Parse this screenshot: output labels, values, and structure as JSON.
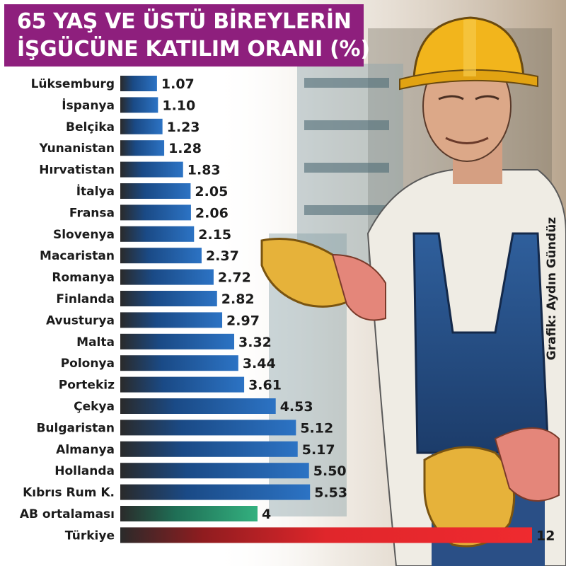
{
  "title": {
    "line1": "65 YAŞ VE ÜSTÜ BİREYLERİN",
    "line2": "İŞGÜCÜNE KATILIM ORANI (%)"
  },
  "credit": "Grafik: Aydın Gündüz",
  "colors": {
    "title_bg": "#8e1f7d",
    "bar_blue": "#1e5fa8",
    "bar_green": "#2e9a72",
    "bar_red": "#e0262b"
  },
  "chart_data": {
    "type": "bar",
    "orientation": "horizontal",
    "title": "65 YAŞ VE ÜSTÜ BİREYLERİN İŞGÜCÜNE KATILIM ORANI (%)",
    "xlabel": "",
    "ylabel": "",
    "grid": false,
    "legend": "none",
    "xlim": [
      0,
      12
    ],
    "categories": [
      "Lüksemburg",
      "İspanya",
      "Belçika",
      "Yunanistan",
      "Hırvatistan",
      "İtalya",
      "Fransa",
      "Slovenya",
      "Macaristan",
      "Romanya",
      "Finlanda",
      "Avusturya",
      "Malta",
      "Polonya",
      "Portekiz",
      "Çekya",
      "Bulgaristan",
      "Almanya",
      "Hollanda",
      "Kıbrıs Rum K.",
      "AB ortalaması",
      "Türkiye"
    ],
    "values": [
      1.07,
      1.1,
      1.23,
      1.28,
      1.83,
      2.05,
      2.06,
      2.15,
      2.37,
      2.72,
      2.82,
      2.97,
      3.32,
      3.44,
      3.61,
      4.53,
      5.12,
      5.17,
      5.5,
      5.53,
      4,
      12
    ],
    "value_labels": [
      "1.07",
      "1.10",
      "1.23",
      "1.28",
      "1.83",
      "2.05",
      "2.06",
      "2.15",
      "2.37",
      "2.72",
      "2.82",
      "2.97",
      "3.32",
      "3.44",
      "3.61",
      "4.53",
      "5.12",
      "5.17",
      "5.50",
      "5.53",
      "4",
      "12"
    ],
    "bar_colors": [
      "blue",
      "blue",
      "blue",
      "blue",
      "blue",
      "blue",
      "blue",
      "blue",
      "blue",
      "blue",
      "blue",
      "blue",
      "blue",
      "blue",
      "blue",
      "blue",
      "blue",
      "blue",
      "blue",
      "blue",
      "green",
      "red"
    ]
  }
}
